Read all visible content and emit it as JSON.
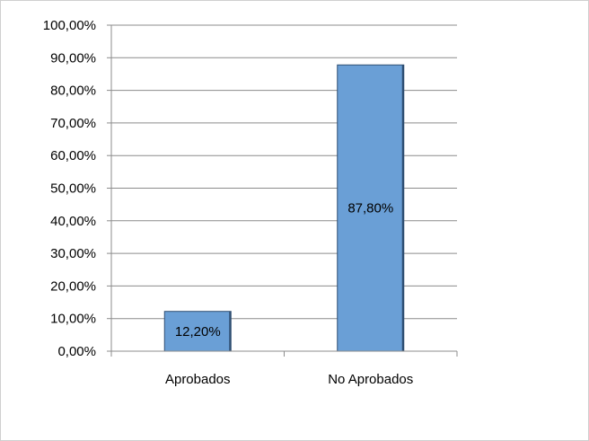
{
  "chart_data": {
    "type": "bar",
    "categories": [
      "Aprobados",
      "No Aprobados"
    ],
    "values": [
      12.2,
      87.8
    ],
    "data_labels": [
      "12,20%",
      "87,80%"
    ],
    "ylim": [
      0,
      100
    ],
    "y_ticks": [
      {
        "value": 0,
        "label": "0,00%"
      },
      {
        "value": 10,
        "label": "10,00%"
      },
      {
        "value": 20,
        "label": "20,00%"
      },
      {
        "value": 30,
        "label": "30,00%"
      },
      {
        "value": 40,
        "label": "40,00%"
      },
      {
        "value": 50,
        "label": "50,00%"
      },
      {
        "value": 60,
        "label": "60,00%"
      },
      {
        "value": 70,
        "label": "70,00%"
      },
      {
        "value": 80,
        "label": "80,00%"
      },
      {
        "value": 90,
        "label": "90,00%"
      },
      {
        "value": 100,
        "label": "100,00%"
      }
    ],
    "grid": true,
    "legend": "none",
    "colors": {
      "bar": "#6a9fd6",
      "bar_edge": "#2f4f73",
      "grid": "#8c8c8c",
      "axis": "#8c8c8c"
    }
  }
}
